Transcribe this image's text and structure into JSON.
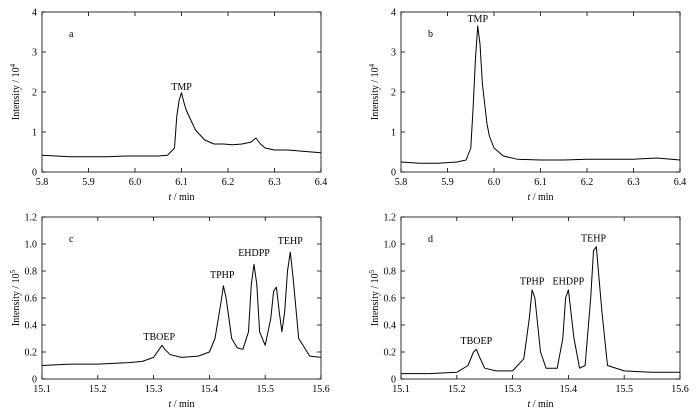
{
  "chart_data": [
    {
      "type": "line",
      "panel_label": "a",
      "xlabel_italic": "t",
      "xlabel_unit": " / min",
      "ylabel": "Intensity / 10",
      "ylabel_exp": "4",
      "xlim": [
        5.8,
        6.4
      ],
      "ylim": [
        0,
        4
      ],
      "xticks": [
        5.8,
        5.9,
        6.0,
        6.1,
        6.2,
        6.3,
        6.4
      ],
      "xtick_labels": [
        "5.8",
        "5.9",
        "6.0",
        "6.1",
        "6.2",
        "6.3",
        "6.4"
      ],
      "yticks": [
        0,
        1,
        2,
        3,
        4
      ],
      "ytick_labels": [
        "0",
        "1",
        "2",
        "3",
        "4"
      ],
      "series": [
        {
          "name": "trace",
          "x": [
            5.8,
            5.83,
            5.86,
            5.9,
            5.94,
            5.98,
            6.02,
            6.05,
            6.07,
            6.085,
            6.09,
            6.095,
            6.1,
            6.105,
            6.11,
            6.12,
            6.13,
            6.15,
            6.17,
            6.19,
            6.21,
            6.23,
            6.25,
            6.26,
            6.27,
            6.28,
            6.3,
            6.33,
            6.36,
            6.38,
            6.4
          ],
          "y": [
            0.42,
            0.4,
            0.38,
            0.38,
            0.38,
            0.4,
            0.4,
            0.4,
            0.42,
            0.6,
            1.4,
            1.8,
            1.98,
            1.75,
            1.55,
            1.3,
            1.05,
            0.8,
            0.7,
            0.7,
            0.68,
            0.7,
            0.75,
            0.85,
            0.7,
            0.6,
            0.55,
            0.55,
            0.52,
            0.5,
            0.48
          ]
        }
      ],
      "annotations": [
        {
          "text": "TMP",
          "x": 6.1,
          "y": 2.05
        }
      ]
    },
    {
      "type": "line",
      "panel_label": "b",
      "xlabel_italic": "t",
      "xlabel_unit": " / min",
      "ylabel": "Intensity / 10",
      "ylabel_exp": "4",
      "xlim": [
        5.8,
        6.4
      ],
      "ylim": [
        0,
        4
      ],
      "xticks": [
        5.8,
        5.9,
        6.0,
        6.1,
        6.2,
        6.3,
        6.4
      ],
      "xtick_labels": [
        "5.8",
        "5.9",
        "6.0",
        "6.1",
        "6.2",
        "6.3",
        "6.4"
      ],
      "yticks": [
        0,
        1,
        2,
        3,
        4
      ],
      "ytick_labels": [
        "0",
        "1",
        "2",
        "3",
        "4"
      ],
      "series": [
        {
          "name": "trace",
          "x": [
            5.8,
            5.84,
            5.88,
            5.92,
            5.94,
            5.95,
            5.955,
            5.96,
            5.965,
            5.97,
            5.975,
            5.98,
            5.985,
            5.99,
            6.0,
            6.02,
            6.05,
            6.1,
            6.15,
            6.2,
            6.25,
            6.3,
            6.35,
            6.4
          ],
          "y": [
            0.25,
            0.22,
            0.22,
            0.25,
            0.3,
            0.6,
            1.6,
            2.8,
            3.65,
            3.2,
            2.2,
            1.7,
            1.2,
            0.9,
            0.6,
            0.4,
            0.32,
            0.3,
            0.3,
            0.32,
            0.32,
            0.32,
            0.35,
            0.3
          ]
        }
      ],
      "annotations": [
        {
          "text": "TMP",
          "x": 5.965,
          "y": 3.75
        }
      ]
    },
    {
      "type": "line",
      "panel_label": "c",
      "xlabel_italic": "t",
      "xlabel_unit": " / min",
      "ylabel": "Intensity / 10",
      "ylabel_exp": "5",
      "xlim": [
        15.1,
        15.6
      ],
      "ylim": [
        0,
        1.2
      ],
      "xticks": [
        15.1,
        15.2,
        15.3,
        15.4,
        15.5,
        15.6
      ],
      "xtick_labels": [
        "15.1",
        "15.2",
        "15.3",
        "15.4",
        "15.5",
        "15.6"
      ],
      "yticks": [
        0,
        0.2,
        0.4,
        0.6,
        0.8,
        1.0,
        1.2
      ],
      "ytick_labels": [
        "0",
        "0.2",
        "0.4",
        "0.6",
        "0.8",
        "1.0",
        "1.2"
      ],
      "series": [
        {
          "name": "trace",
          "x": [
            15.1,
            15.15,
            15.2,
            15.25,
            15.28,
            15.3,
            15.31,
            15.315,
            15.32,
            15.33,
            15.35,
            15.38,
            15.4,
            15.41,
            15.42,
            15.425,
            15.43,
            15.44,
            15.45,
            15.46,
            15.47,
            15.475,
            15.48,
            15.485,
            15.49,
            15.5,
            15.51,
            15.515,
            15.52,
            15.525,
            15.53,
            15.535,
            15.54,
            15.545,
            15.55,
            15.56,
            15.58,
            15.6
          ],
          "y": [
            0.1,
            0.11,
            0.11,
            0.12,
            0.13,
            0.16,
            0.22,
            0.25,
            0.22,
            0.18,
            0.16,
            0.17,
            0.2,
            0.3,
            0.55,
            0.69,
            0.6,
            0.3,
            0.23,
            0.22,
            0.35,
            0.7,
            0.85,
            0.7,
            0.35,
            0.25,
            0.45,
            0.65,
            0.68,
            0.5,
            0.35,
            0.5,
            0.8,
            0.94,
            0.75,
            0.3,
            0.17,
            0.16
          ]
        }
      ],
      "annotations": [
        {
          "text": "TBOEP",
          "x": 15.31,
          "y": 0.29
        },
        {
          "text": "TPHP",
          "x": 15.423,
          "y": 0.75
        },
        {
          "text": "EHDPP",
          "x": 15.48,
          "y": 0.91
        },
        {
          "text": "TEHP",
          "x": 15.545,
          "y": 1.0
        }
      ]
    },
    {
      "type": "line",
      "panel_label": "d",
      "xlabel_italic": "t",
      "xlabel_unit": " / min",
      "ylabel": "Intensity / 10",
      "ylabel_exp": "5",
      "xlim": [
        15.1,
        15.6
      ],
      "ylim": [
        0,
        1.2
      ],
      "xticks": [
        15.1,
        15.2,
        15.3,
        15.4,
        15.5,
        15.6
      ],
      "xtick_labels": [
        "15.1",
        "15.2",
        "15.3",
        "15.4",
        "15.5",
        "15.6"
      ],
      "yticks": [
        0,
        0.2,
        0.4,
        0.6,
        0.8,
        1.0,
        1.2
      ],
      "ytick_labels": [
        "0",
        "0.2",
        "0.4",
        "0.6",
        "0.8",
        "1.0",
        "1.2"
      ],
      "series": [
        {
          "name": "trace",
          "x": [
            15.1,
            15.15,
            15.2,
            15.22,
            15.23,
            15.235,
            15.24,
            15.25,
            15.27,
            15.3,
            15.32,
            15.33,
            15.335,
            15.34,
            15.35,
            15.36,
            15.38,
            15.39,
            15.395,
            15.4,
            15.41,
            15.42,
            15.43,
            15.44,
            15.445,
            15.45,
            15.46,
            15.47,
            15.5,
            15.55,
            15.6
          ],
          "y": [
            0.04,
            0.04,
            0.05,
            0.1,
            0.2,
            0.22,
            0.17,
            0.08,
            0.06,
            0.06,
            0.15,
            0.45,
            0.66,
            0.6,
            0.2,
            0.08,
            0.08,
            0.3,
            0.6,
            0.66,
            0.3,
            0.08,
            0.1,
            0.6,
            0.95,
            0.98,
            0.5,
            0.1,
            0.06,
            0.05,
            0.05
          ]
        }
      ],
      "annotations": [
        {
          "text": "TBOEP",
          "x": 15.235,
          "y": 0.26
        },
        {
          "text": "TPHP",
          "x": 15.335,
          "y": 0.7
        },
        {
          "text": "EHDPP",
          "x": 15.4,
          "y": 0.7
        },
        {
          "text": "TEHP",
          "x": 15.445,
          "y": 1.02
        }
      ]
    }
  ]
}
